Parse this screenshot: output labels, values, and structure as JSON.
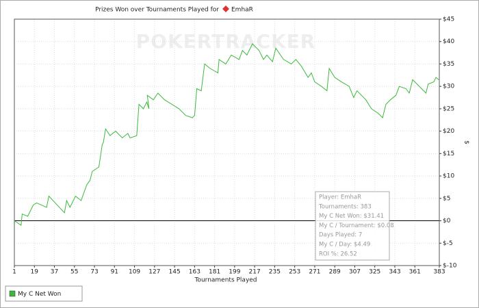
{
  "chart_data": {
    "type": "line",
    "title": "Prizes Won over Tournaments Played for",
    "title_player": "EmhaR",
    "watermark": "POKERTRACKER",
    "xlabel": "Tournaments Played",
    "ylabel": "$",
    "xlim": [
      1,
      383
    ],
    "xticks": [
      1,
      19,
      37,
      55,
      73,
      91,
      109,
      127,
      145,
      163,
      181,
      199,
      217,
      235,
      253,
      271,
      289,
      307,
      325,
      343,
      361,
      383
    ],
    "ylim": [
      -10,
      45
    ],
    "yticks": [
      {
        "value": -10,
        "label": "$-10"
      },
      {
        "value": -5,
        "label": "$-5"
      },
      {
        "value": 0,
        "label": "$0"
      },
      {
        "value": 5,
        "label": "$5"
      },
      {
        "value": 10,
        "label": "$10"
      },
      {
        "value": 15,
        "label": "$15"
      },
      {
        "value": 20,
        "label": "$20"
      },
      {
        "value": 25,
        "label": "$25"
      },
      {
        "value": 30,
        "label": "$30"
      },
      {
        "value": 35,
        "label": "$35"
      },
      {
        "value": 40,
        "label": "$40"
      },
      {
        "value": 45,
        "label": "$45"
      }
    ],
    "grid": true,
    "legend": "bottom-left",
    "x": [
      1,
      7,
      8,
      13,
      18,
      21,
      30,
      32,
      46,
      48,
      51,
      56,
      61,
      66,
      69,
      71,
      77,
      80,
      81,
      83,
      87,
      92,
      98,
      103,
      105,
      111,
      113,
      117,
      120,
      122,
      120.5,
      126,
      130,
      136,
      149,
      155,
      161,
      163,
      165,
      169,
      172,
      177,
      184,
      185,
      191,
      196,
      203,
      206,
      210,
      215,
      221,
      225,
      228,
      233,
      236,
      243,
      250,
      254,
      259,
      265,
      268,
      271,
      277,
      282,
      284,
      289,
      295,
      302,
      306,
      309,
      317,
      322,
      328,
      332,
      335,
      339,
      344,
      347,
      353,
      356,
      359,
      367,
      371,
      373,
      378,
      380,
      383
    ],
    "series": [
      {
        "name": "My C Net Won",
        "color": "#3cb83c",
        "values": [
          0,
          -1,
          1.5,
          1,
          3.5,
          4,
          3,
          5.5,
          1.8,
          4.5,
          3,
          5.5,
          4.5,
          8,
          9,
          11,
          12,
          17,
          17.5,
          20.5,
          19,
          20,
          18.5,
          19.5,
          18.5,
          19,
          26,
          25,
          26.5,
          25,
          28,
          27,
          28.5,
          27,
          25,
          23.5,
          23,
          23.5,
          29.5,
          29,
          35,
          34,
          33,
          36,
          35,
          37,
          36,
          38,
          37,
          39.5,
          38,
          36,
          37,
          35.5,
          38.5,
          36,
          35,
          36,
          34.5,
          32,
          33,
          31,
          30,
          29,
          34,
          32,
          31,
          30,
          27.5,
          29,
          27,
          25,
          24,
          23,
          26,
          27,
          28,
          30,
          29.5,
          28.5,
          31.5,
          29.5,
          28.5,
          30.5,
          31,
          32,
          31.4
        ]
      }
    ]
  },
  "tooltip": [
    "Player: EmhaR",
    "Tournaments: 383",
    "My C Net Won: $31.41",
    "My C / Tournament: $0.08",
    "Days Played: 7",
    "My C / Day: $4.49",
    "ROI %: 26.52"
  ]
}
